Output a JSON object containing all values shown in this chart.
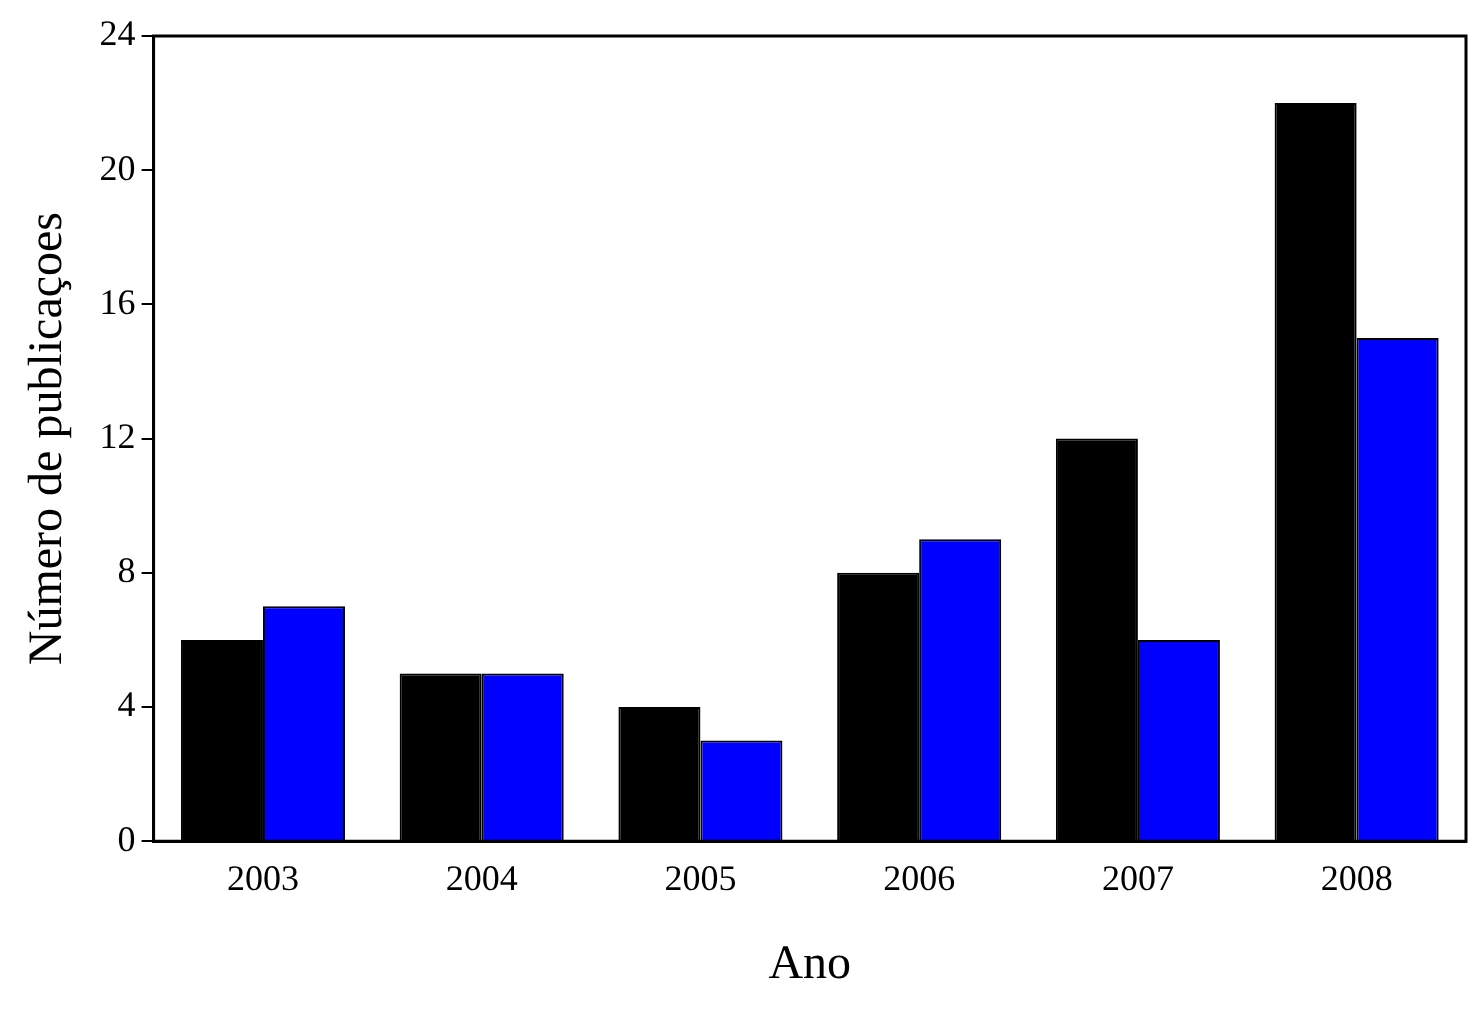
{
  "chart_data": {
    "type": "bar",
    "xlabel": "Ano",
    "ylabel": "Número de publicaçoes",
    "categories": [
      "2003",
      "2004",
      "2005",
      "2006",
      "2007",
      "2008"
    ],
    "series": [
      {
        "color": "#000000",
        "values": [
          6,
          5,
          4,
          8,
          12,
          22
        ]
      },
      {
        "color": "#0000ff",
        "values": [
          7,
          5,
          3,
          9,
          6,
          15
        ]
      }
    ],
    "ylim": [
      0,
      24
    ],
    "yticks": [
      0,
      4,
      8,
      12,
      16,
      20,
      24
    ],
    "grid": false,
    "legend": false
  }
}
